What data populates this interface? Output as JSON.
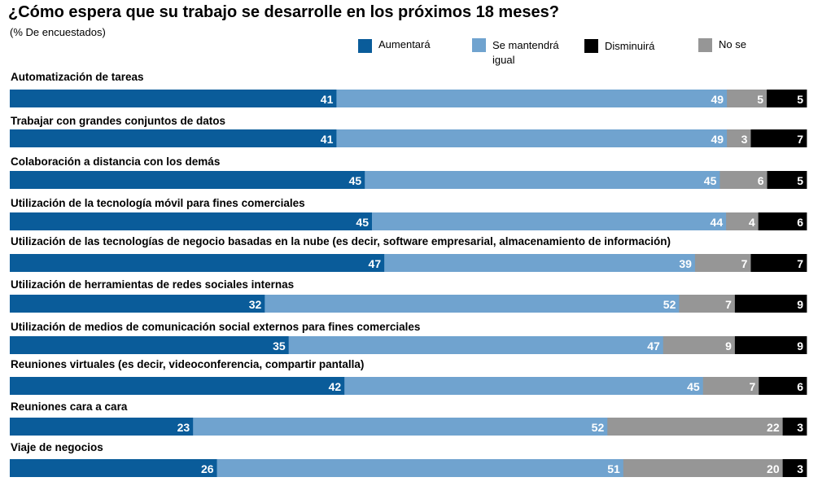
{
  "chart_data": {
    "type": "bar",
    "orientation": "horizontal",
    "stacked": true,
    "title": "¿Cómo espera que su trabajo se desarrolle en los próximos 18 meses?",
    "subtitle": "(% De encuestados)",
    "xlim": [
      0,
      100
    ],
    "legend_position": "top-right",
    "categories": [
      "Automatización de tareas",
      "Trabajar con grandes conjuntos de datos",
      "Colaboración a distancia con los demás",
      "Utilización de la tecnología móvil para fines comerciales",
      "Utilización de las tecnologías de negocio basadas en la nube (es decir, software empresarial, almacenamiento de información)",
      "Utilización de herramientas de redes sociales internas",
      "Utilización de medios de comunicación social externos para fines comerciales",
      "Reuniones virtuales (es decir, videoconferencia, compartir pantalla)",
      "Reuniones cara a cara",
      "Viaje de negocios"
    ],
    "series": [
      {
        "name": "Aumentará",
        "color": "#0a5c9a",
        "values": [
          41,
          41,
          45,
          45,
          47,
          32,
          35,
          42,
          23,
          26
        ]
      },
      {
        "name": "Se mantendrá igual",
        "color": "#70a3cf",
        "values": [
          49,
          49,
          45,
          44,
          39,
          52,
          47,
          45,
          52,
          51
        ]
      },
      {
        "name": "No se",
        "color": "#969696",
        "values": [
          5,
          3,
          6,
          4,
          7,
          7,
          9,
          7,
          22,
          20
        ]
      },
      {
        "name": "Disminuirá",
        "color": "#000000",
        "values": [
          5,
          7,
          5,
          6,
          7,
          9,
          9,
          6,
          3,
          3
        ]
      }
    ]
  },
  "legend": [
    {
      "label_lines": [
        "Aumentará"
      ],
      "color": "#0a5c9a"
    },
    {
      "label_lines": [
        "Se mantendrá",
        "igual"
      ],
      "color": "#70a3cf"
    },
    {
      "label_lines": [
        "Disminuirá"
      ],
      "color": "#000000"
    },
    {
      "label_lines": [
        "No se"
      ],
      "color": "#969696"
    }
  ]
}
